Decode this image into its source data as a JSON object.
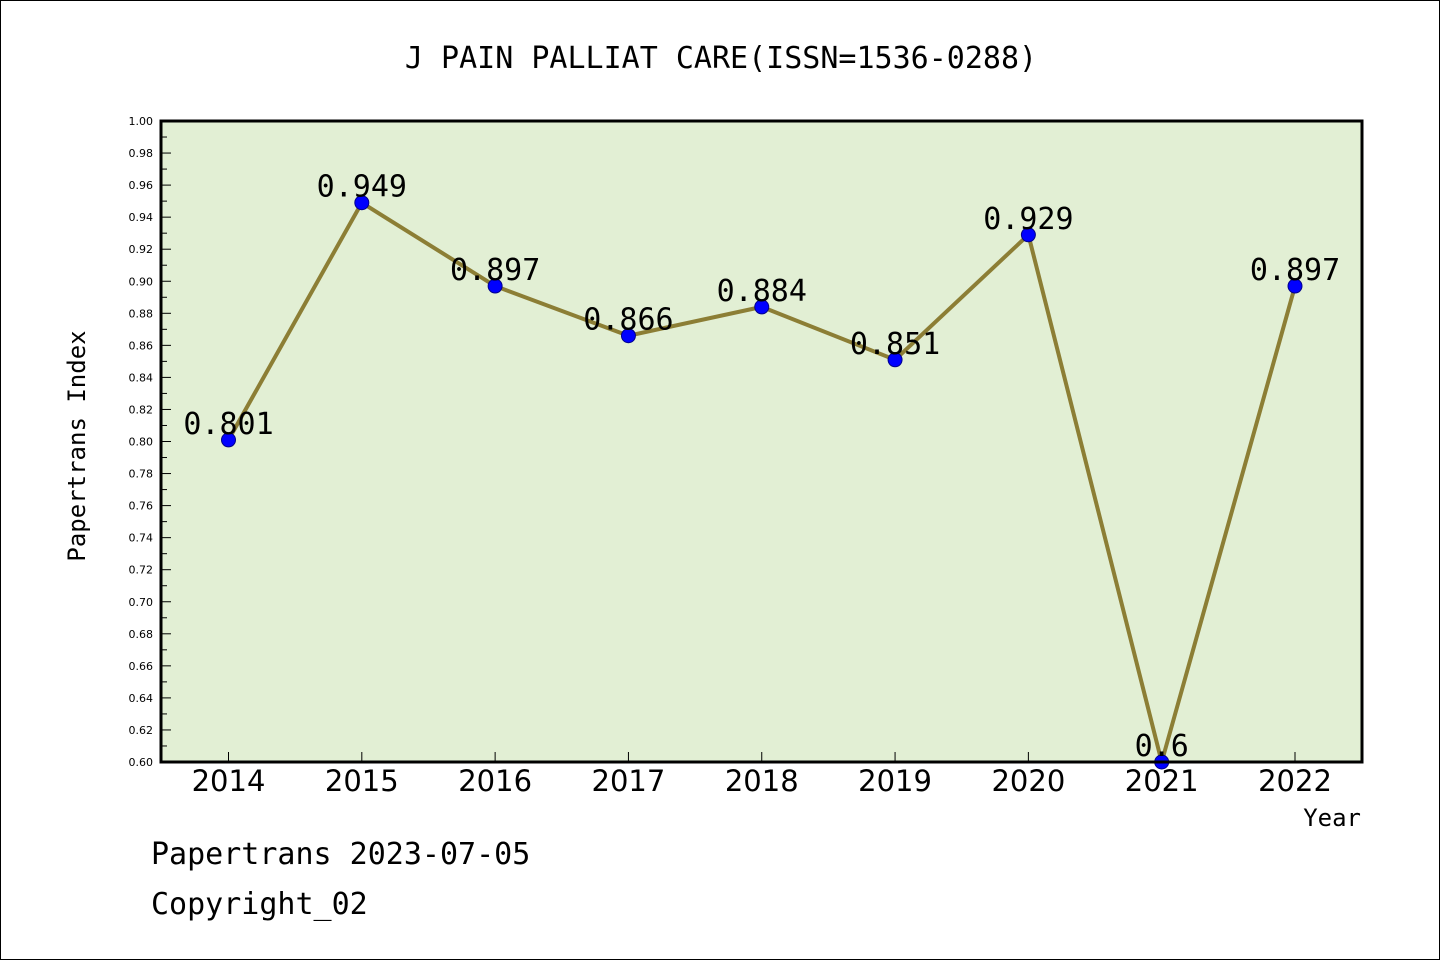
{
  "chart_data": {
    "type": "line",
    "title": "J PAIN PALLIAT CARE(ISSN=1536-0288)",
    "xlabel": "Year",
    "ylabel": "Papertrans Index",
    "categories": [
      "2014",
      "2015",
      "2016",
      "2017",
      "2018",
      "2019",
      "2020",
      "2021",
      "2022"
    ],
    "values": [
      0.801,
      0.949,
      0.897,
      0.866,
      0.884,
      0.851,
      0.929,
      0.6,
      0.897
    ],
    "data_labels": [
      "0.801",
      "0.949",
      "0.897",
      "0.866",
      "0.884",
      "0.851",
      "0.929",
      "0.6",
      "0.897"
    ],
    "ylim": [
      0.6,
      1.0
    ],
    "yticks": [
      "0.60",
      "0.62",
      "0.64",
      "0.66",
      "0.68",
      "0.70",
      "0.72",
      "0.74",
      "0.76",
      "0.78",
      "0.80",
      "0.82",
      "0.84",
      "0.86",
      "0.88",
      "0.90",
      "0.92",
      "0.94",
      "0.96",
      "0.98",
      "1.00"
    ],
    "grid": false,
    "colors": {
      "plot_background": "#e2efd4",
      "line": "#8c7e35",
      "marker": "#0000ff"
    }
  },
  "footer": {
    "line1": "Papertrans 2023-07-05",
    "line2": "Copyright_02"
  }
}
